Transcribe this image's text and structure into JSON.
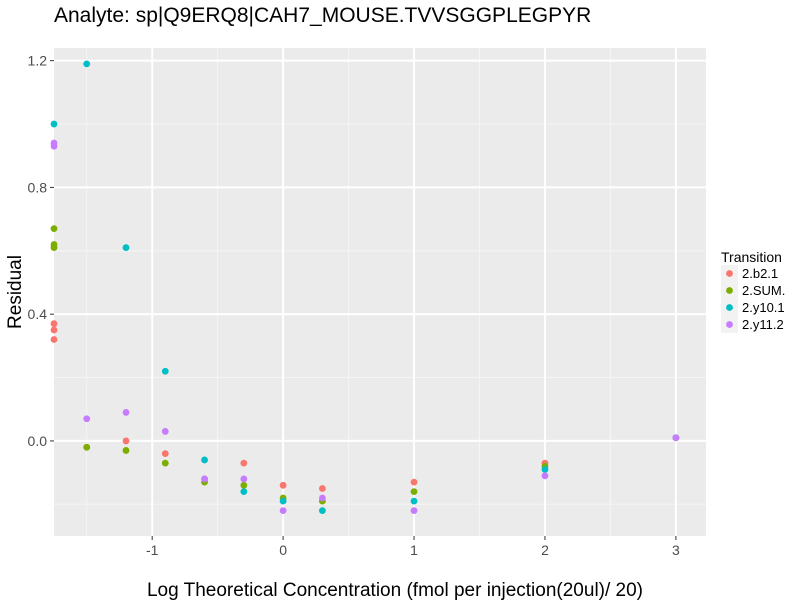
{
  "chart_data": {
    "type": "scatter",
    "title": "Analyte: sp|Q9ERQ8|CAH7_MOUSE.TVVSGGPLEGPYR",
    "xlabel": "Log Theoretical Concentration (fmol per injection(20ul)/ 20)",
    "ylabel": "Residual",
    "xlim": [
      -1.75,
      3.23
    ],
    "ylim": [
      -0.3,
      1.24
    ],
    "x_ticks": [
      -1,
      0,
      1,
      2,
      3
    ],
    "x_tick_labels": [
      "-1",
      "0",
      "1",
      "2",
      "3"
    ],
    "y_ticks": [
      0.0,
      0.4,
      0.8,
      1.2
    ],
    "y_tick_labels": [
      "0.0",
      "0.4",
      "0.8",
      "1.2"
    ],
    "grid": true,
    "legend": {
      "title": "Transition",
      "position": "right"
    },
    "series": [
      {
        "name": "2.b2.1",
        "color": "#F8766D",
        "points": [
          [
            -1.75,
            0.37
          ],
          [
            -1.75,
            0.35
          ],
          [
            -1.75,
            0.32
          ],
          [
            -1.5,
            -0.02
          ],
          [
            -1.2,
            0.0
          ],
          [
            -0.9,
            -0.04
          ],
          [
            -0.6,
            -0.12
          ],
          [
            -0.3,
            -0.07
          ],
          [
            0.0,
            -0.14
          ],
          [
            0.3,
            -0.15
          ],
          [
            1.0,
            -0.13
          ],
          [
            2.0,
            -0.07
          ],
          [
            3.0,
            0.01
          ]
        ]
      },
      {
        "name": "2.SUM.",
        "color": "#7CAE00",
        "points": [
          [
            -1.75,
            0.67
          ],
          [
            -1.75,
            0.62
          ],
          [
            -1.75,
            0.61
          ],
          [
            -1.5,
            -0.02
          ],
          [
            -1.2,
            -0.03
          ],
          [
            -0.9,
            -0.07
          ],
          [
            -0.6,
            -0.13
          ],
          [
            -0.3,
            -0.14
          ],
          [
            0.0,
            -0.18
          ],
          [
            0.3,
            -0.19
          ],
          [
            1.0,
            -0.16
          ],
          [
            2.0,
            -0.08
          ],
          [
            3.0,
            0.01
          ]
        ]
      },
      {
        "name": "2.y10.1",
        "color": "#00BFC4",
        "points": [
          [
            -1.75,
            1.0
          ],
          [
            -1.5,
            1.19
          ],
          [
            -1.2,
            0.61
          ],
          [
            -0.9,
            0.22
          ],
          [
            -0.6,
            -0.06
          ],
          [
            -0.3,
            -0.16
          ],
          [
            0.0,
            -0.19
          ],
          [
            0.3,
            -0.22
          ],
          [
            1.0,
            -0.19
          ],
          [
            2.0,
            -0.09
          ],
          [
            3.0,
            0.01
          ]
        ]
      },
      {
        "name": "2.y11.2",
        "color": "#C77CFF",
        "points": [
          [
            -1.75,
            0.94
          ],
          [
            -1.75,
            0.93
          ],
          [
            -1.5,
            0.07
          ],
          [
            -1.2,
            0.09
          ],
          [
            -0.9,
            0.03
          ],
          [
            -0.6,
            -0.12
          ],
          [
            -0.3,
            -0.12
          ],
          [
            0.0,
            -0.22
          ],
          [
            0.3,
            -0.18
          ],
          [
            1.0,
            -0.22
          ],
          [
            2.0,
            -0.11
          ],
          [
            3.0,
            0.01
          ]
        ]
      }
    ]
  }
}
